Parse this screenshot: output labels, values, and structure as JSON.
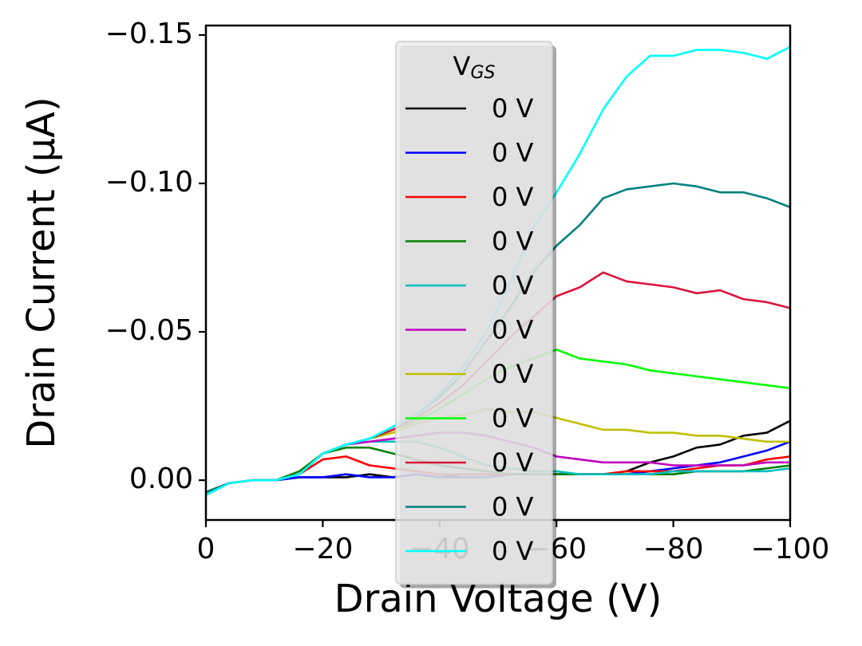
{
  "chart_data": {
    "type": "line",
    "x_label": "Drain Voltage (V)",
    "y_label": "Drain Current (μA)",
    "legend_title": {
      "text": "V",
      "subscript": "GS"
    },
    "legend_loc": "upper center",
    "xlim": [
      0,
      -100
    ],
    "ylim": [
      0.0134,
      -0.1532
    ],
    "xticks": [
      0,
      {
        "value": -20,
        "label": "−20"
      },
      {
        "value": -40,
        "label": "−40"
      },
      {
        "value": -60,
        "label": "−60"
      },
      {
        "value": -80,
        "label": "−80"
      },
      {
        "value": -100,
        "label": "−100"
      }
    ],
    "yticks": [
      {
        "value": 0,
        "label": "0.00"
      },
      {
        "value": -0.05,
        "label": "−0.05"
      },
      {
        "value": -0.1,
        "label": "−0.10"
      },
      {
        "value": -0.15,
        "label": "−0.15"
      }
    ],
    "x": [
      0,
      -4,
      -8,
      -12,
      -16,
      -20,
      -24,
      -28,
      -32,
      -36,
      -40,
      -44,
      -48,
      -52,
      -56,
      -60,
      -64,
      -68,
      -72,
      -76,
      -80,
      -84,
      -88,
      -92,
      -96,
      -100
    ],
    "series": [
      {
        "name": "0 V",
        "color": "#000000",
        "values": [
          0.004,
          0.001,
          0,
          0,
          -0.001,
          -0.001,
          -0.001,
          -0.002,
          -0.001,
          -0.002,
          -0.001,
          -0.002,
          -0.002,
          -0.002,
          -0.002,
          -0.002,
          -0.002,
          -0.002,
          -0.003,
          -0.006,
          -0.008,
          -0.011,
          -0.012,
          -0.015,
          -0.016,
          -0.02
        ]
      },
      {
        "name": "0 V",
        "color": "#0000ff",
        "values": [
          0.004,
          0.001,
          0,
          0,
          -0.001,
          -0.001,
          -0.002,
          -0.001,
          -0.001,
          -0.002,
          -0.001,
          -0.001,
          -0.001,
          -0.002,
          -0.002,
          -0.002,
          -0.002,
          -0.002,
          -0.002,
          -0.003,
          -0.004,
          -0.005,
          -0.006,
          -0.008,
          -0.01,
          -0.013
        ]
      },
      {
        "name": "0 V",
        "color": "#ff0000",
        "values": [
          0.005,
          0.001,
          0,
          0,
          -0.002,
          -0.007,
          -0.008,
          -0.005,
          -0.004,
          -0.003,
          -0.002,
          -0.002,
          -0.002,
          -0.002,
          -0.002,
          -0.002,
          -0.002,
          -0.002,
          -0.003,
          -0.003,
          -0.003,
          -0.004,
          -0.005,
          -0.005,
          -0.007,
          -0.008
        ]
      },
      {
        "name": "0 V",
        "color": "#008000",
        "values": [
          0.004,
          0.001,
          0,
          0,
          -0.003,
          -0.009,
          -0.011,
          -0.011,
          -0.009,
          -0.007,
          -0.005,
          -0.004,
          -0.003,
          -0.002,
          -0.002,
          -0.002,
          -0.002,
          -0.002,
          -0.002,
          -0.002,
          -0.002,
          -0.003,
          -0.003,
          -0.003,
          -0.004,
          -0.005
        ]
      },
      {
        "name": "0 V",
        "color": "#00bfbf",
        "values": [
          0.004,
          0.001,
          0,
          0,
          -0.002,
          -0.009,
          -0.012,
          -0.013,
          -0.013,
          -0.013,
          -0.011,
          -0.008,
          -0.005,
          -0.004,
          -0.003,
          -0.003,
          -0.002,
          -0.002,
          -0.002,
          -0.002,
          -0.003,
          -0.003,
          -0.003,
          -0.003,
          -0.003,
          -0.004
        ]
      },
      {
        "name": "0 V",
        "color": "#bf00bf",
        "values": [
          0.004,
          0.001,
          0,
          0,
          -0.002,
          -0.009,
          -0.012,
          -0.013,
          -0.014,
          -0.015,
          -0.016,
          -0.016,
          -0.015,
          -0.013,
          -0.011,
          -0.008,
          -0.007,
          -0.006,
          -0.006,
          -0.006,
          -0.005,
          -0.005,
          -0.005,
          -0.005,
          -0.006,
          -0.006
        ]
      },
      {
        "name": "0 V",
        "color": "#bfbf00",
        "values": [
          0.005,
          0.001,
          0,
          0,
          -0.002,
          -0.009,
          -0.012,
          -0.014,
          -0.016,
          -0.019,
          -0.021,
          -0.022,
          -0.024,
          -0.023,
          -0.023,
          -0.021,
          -0.019,
          -0.017,
          -0.017,
          -0.016,
          -0.016,
          -0.015,
          -0.015,
          -0.014,
          -0.013,
          -0.013
        ]
      },
      {
        "name": "0 V",
        "color": "#00ff00",
        "values": [
          0.004,
          0.001,
          0,
          0,
          -0.002,
          -0.009,
          -0.012,
          -0.014,
          -0.017,
          -0.02,
          -0.024,
          -0.029,
          -0.034,
          -0.038,
          -0.041,
          -0.044,
          -0.041,
          -0.04,
          -0.039,
          -0.037,
          -0.036,
          -0.035,
          -0.034,
          -0.033,
          -0.032,
          -0.031
        ]
      },
      {
        "name": "0 V",
        "color": "#dc143c",
        "values": [
          0.004,
          0.001,
          0,
          0,
          -0.002,
          -0.009,
          -0.012,
          -0.014,
          -0.017,
          -0.021,
          -0.026,
          -0.032,
          -0.04,
          -0.048,
          -0.055,
          -0.062,
          -0.065,
          -0.07,
          -0.067,
          -0.066,
          -0.065,
          -0.063,
          -0.064,
          -0.061,
          -0.06,
          -0.058
        ]
      },
      {
        "name": "0 V",
        "color": "#008080",
        "values": [
          0.004,
          0.001,
          0,
          0,
          -0.002,
          -0.009,
          -0.012,
          -0.014,
          -0.018,
          -0.022,
          -0.028,
          -0.036,
          -0.047,
          -0.058,
          -0.07,
          -0.079,
          -0.086,
          -0.095,
          -0.098,
          -0.099,
          -0.1,
          -0.099,
          -0.097,
          -0.097,
          -0.095,
          -0.092
        ]
      },
      {
        "name": "0 V",
        "color": "#00ffff",
        "values": [
          0.005,
          0.001,
          0,
          0,
          -0.002,
          -0.009,
          -0.012,
          -0.014,
          -0.018,
          -0.022,
          -0.029,
          -0.038,
          -0.05,
          -0.066,
          -0.085,
          -0.097,
          -0.11,
          -0.125,
          -0.136,
          -0.143,
          -0.143,
          -0.145,
          -0.145,
          -0.144,
          -0.142,
          -0.146
        ]
      }
    ]
  }
}
